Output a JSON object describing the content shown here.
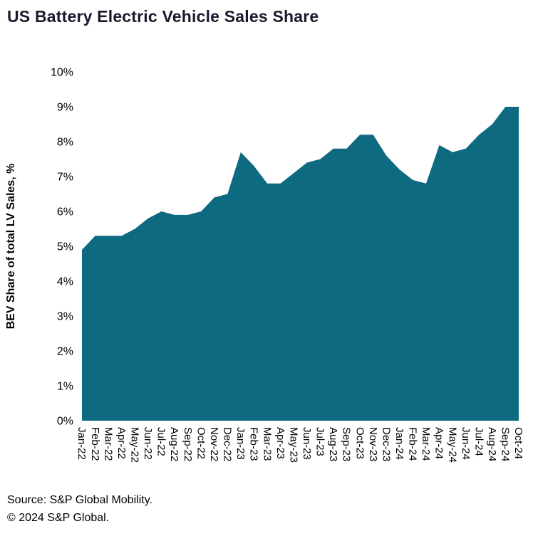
{
  "header": {
    "title": "US Battery Electric Vehicle Sales Share"
  },
  "footer": {
    "source": "Source: S&P Global Mobility.",
    "copyright": "© 2024 S&P Global."
  },
  "chart_data": {
    "type": "area",
    "title": "US Battery Electric Vehicle Sales Share",
    "xlabel": "",
    "ylabel": "BEV Share of total LV Sales, %",
    "ylim": [
      0,
      10
    ],
    "ytick_step": 1,
    "ytick_suffix": "%",
    "grid": false,
    "legend": "none",
    "fill_color": "#0e6a80",
    "categories": [
      "Jan-22",
      "Feb-22",
      "Mar-22",
      "Apr-22",
      "May-22",
      "Jun-22",
      "Jul-22",
      "Aug-22",
      "Sep-22",
      "Oct-22",
      "Nov-22",
      "Dec-22",
      "Jan-23",
      "Feb-23",
      "Mar-23",
      "Apr-23",
      "May-23",
      "Jun-23",
      "Jul-23",
      "Aug-23",
      "Sep-23",
      "Oct-23",
      "Nov-23",
      "Dec-23",
      "Jan-24",
      "Feb-24",
      "Mar-24",
      "Apr-24",
      "May-24",
      "Jun-24",
      "Jul-24",
      "Aug-24",
      "Sep-24",
      "Oct-24"
    ],
    "values": [
      4.9,
      5.3,
      5.3,
      5.3,
      5.5,
      5.8,
      6.0,
      5.9,
      5.9,
      6.0,
      6.4,
      6.5,
      7.7,
      7.3,
      6.8,
      6.8,
      7.1,
      7.4,
      7.5,
      7.8,
      7.8,
      8.2,
      8.2,
      7.6,
      7.2,
      6.9,
      6.8,
      7.9,
      7.7,
      7.8,
      8.2,
      8.5,
      9.0,
      9.0
    ]
  }
}
